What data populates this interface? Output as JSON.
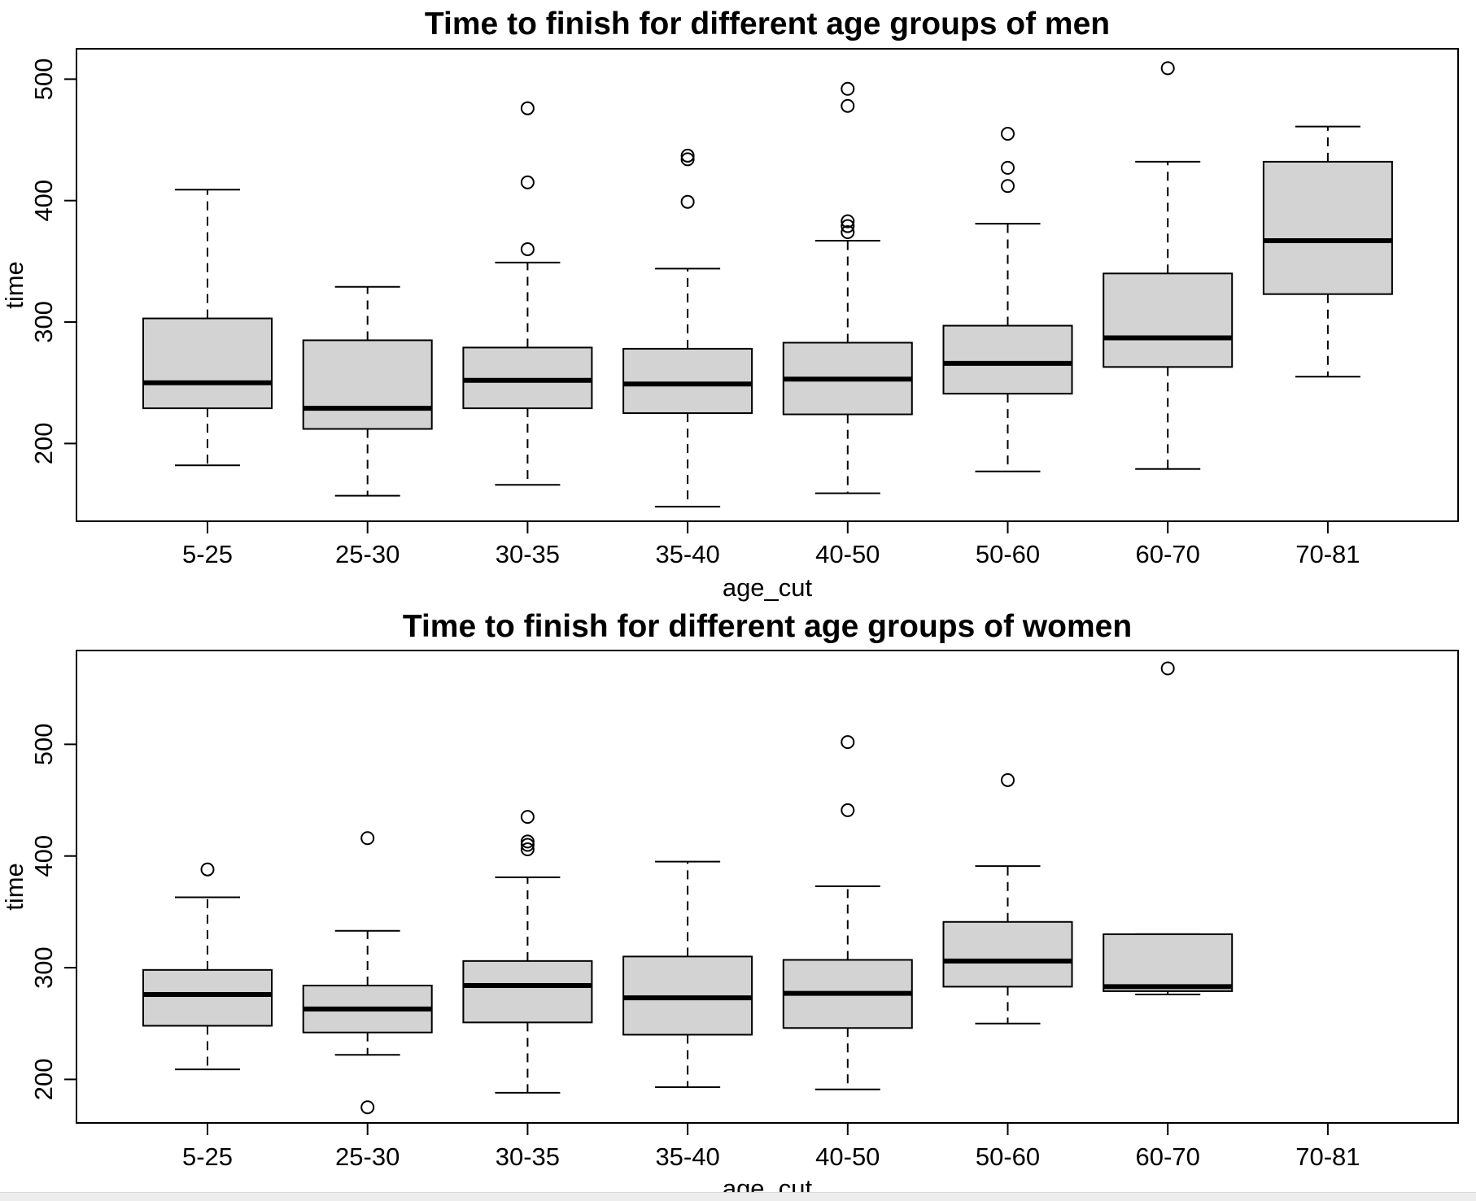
{
  "colors": {
    "box_fill": "#d3d3d3",
    "stroke": "#000000",
    "background": "#ffffff"
  },
  "chart_data": [
    {
      "type": "boxplot",
      "title": "Time to finish for different age groups of men",
      "xlabel": "age_cut",
      "ylabel": "time",
      "ylim": [
        136,
        525
      ],
      "yticks": [
        200,
        300,
        400,
        500
      ],
      "grid": false,
      "categories": [
        "5-25",
        "25-30",
        "30-35",
        "35-40",
        "40-50",
        "50-60",
        "60-70",
        "70-81"
      ],
      "boxes": [
        {
          "category": "5-25",
          "whisker_low": 182,
          "q1": 229,
          "median": 250,
          "q3": 303,
          "whisker_high": 409,
          "outliers": []
        },
        {
          "category": "25-30",
          "whisker_low": 157,
          "q1": 212,
          "median": 229,
          "q3": 285,
          "whisker_high": 329,
          "outliers": []
        },
        {
          "category": "30-35",
          "whisker_low": 166,
          "q1": 229,
          "median": 252,
          "q3": 279,
          "whisker_high": 349,
          "outliers": [
            360,
            415,
            476
          ]
        },
        {
          "category": "35-40",
          "whisker_low": 148,
          "q1": 225,
          "median": 249,
          "q3": 278,
          "whisker_high": 344,
          "outliers": [
            399,
            434,
            437
          ]
        },
        {
          "category": "40-50",
          "whisker_low": 159,
          "q1": 224,
          "median": 253,
          "q3": 283,
          "whisker_high": 367,
          "outliers": [
            374,
            379,
            383,
            478,
            492
          ]
        },
        {
          "category": "50-60",
          "whisker_low": 177,
          "q1": 241,
          "median": 266,
          "q3": 297,
          "whisker_high": 381,
          "outliers": [
            412,
            427,
            455
          ]
        },
        {
          "category": "60-70",
          "whisker_low": 179,
          "q1": 263,
          "median": 287,
          "q3": 340,
          "whisker_high": 432,
          "outliers": [
            509
          ]
        },
        {
          "category": "70-81",
          "whisker_low": 255,
          "q1": 323,
          "median": 367,
          "q3": 432,
          "whisker_high": 461,
          "outliers": []
        }
      ]
    },
    {
      "type": "boxplot",
      "title": "Time to finish for different age groups of women",
      "xlabel": "age_cut",
      "ylabel": "time",
      "ylim": [
        161,
        584
      ],
      "yticks": [
        200,
        300,
        400,
        500
      ],
      "grid": false,
      "categories": [
        "5-25",
        "25-30",
        "30-35",
        "35-40",
        "40-50",
        "50-60",
        "60-70",
        "70-81"
      ],
      "boxes": [
        {
          "category": "5-25",
          "whisker_low": 209,
          "q1": 248,
          "median": 276,
          "q3": 298,
          "whisker_high": 363,
          "outliers": [
            388
          ]
        },
        {
          "category": "25-30",
          "whisker_low": 222,
          "q1": 242,
          "median": 263,
          "q3": 284,
          "whisker_high": 333,
          "outliers": [
            175,
            416
          ]
        },
        {
          "category": "30-35",
          "whisker_low": 188,
          "q1": 251,
          "median": 284,
          "q3": 306,
          "whisker_high": 381,
          "outliers": [
            406,
            410,
            413,
            435
          ]
        },
        {
          "category": "35-40",
          "whisker_low": 193,
          "q1": 240,
          "median": 273,
          "q3": 310,
          "whisker_high": 395,
          "outliers": []
        },
        {
          "category": "40-50",
          "whisker_low": 191,
          "q1": 246,
          "median": 277,
          "q3": 307,
          "whisker_high": 373,
          "outliers": [
            441,
            502
          ]
        },
        {
          "category": "50-60",
          "whisker_low": 250,
          "q1": 283,
          "median": 306,
          "q3": 341,
          "whisker_high": 391,
          "outliers": [
            468
          ]
        },
        {
          "category": "60-70",
          "whisker_low": 276,
          "q1": 279,
          "median": 283,
          "q3": 330,
          "whisker_high": 330,
          "outliers": [
            568
          ]
        },
        {
          "category": "70-81",
          "whisker_low": null,
          "q1": null,
          "median": null,
          "q3": null,
          "whisker_high": null,
          "outliers": []
        }
      ]
    }
  ]
}
